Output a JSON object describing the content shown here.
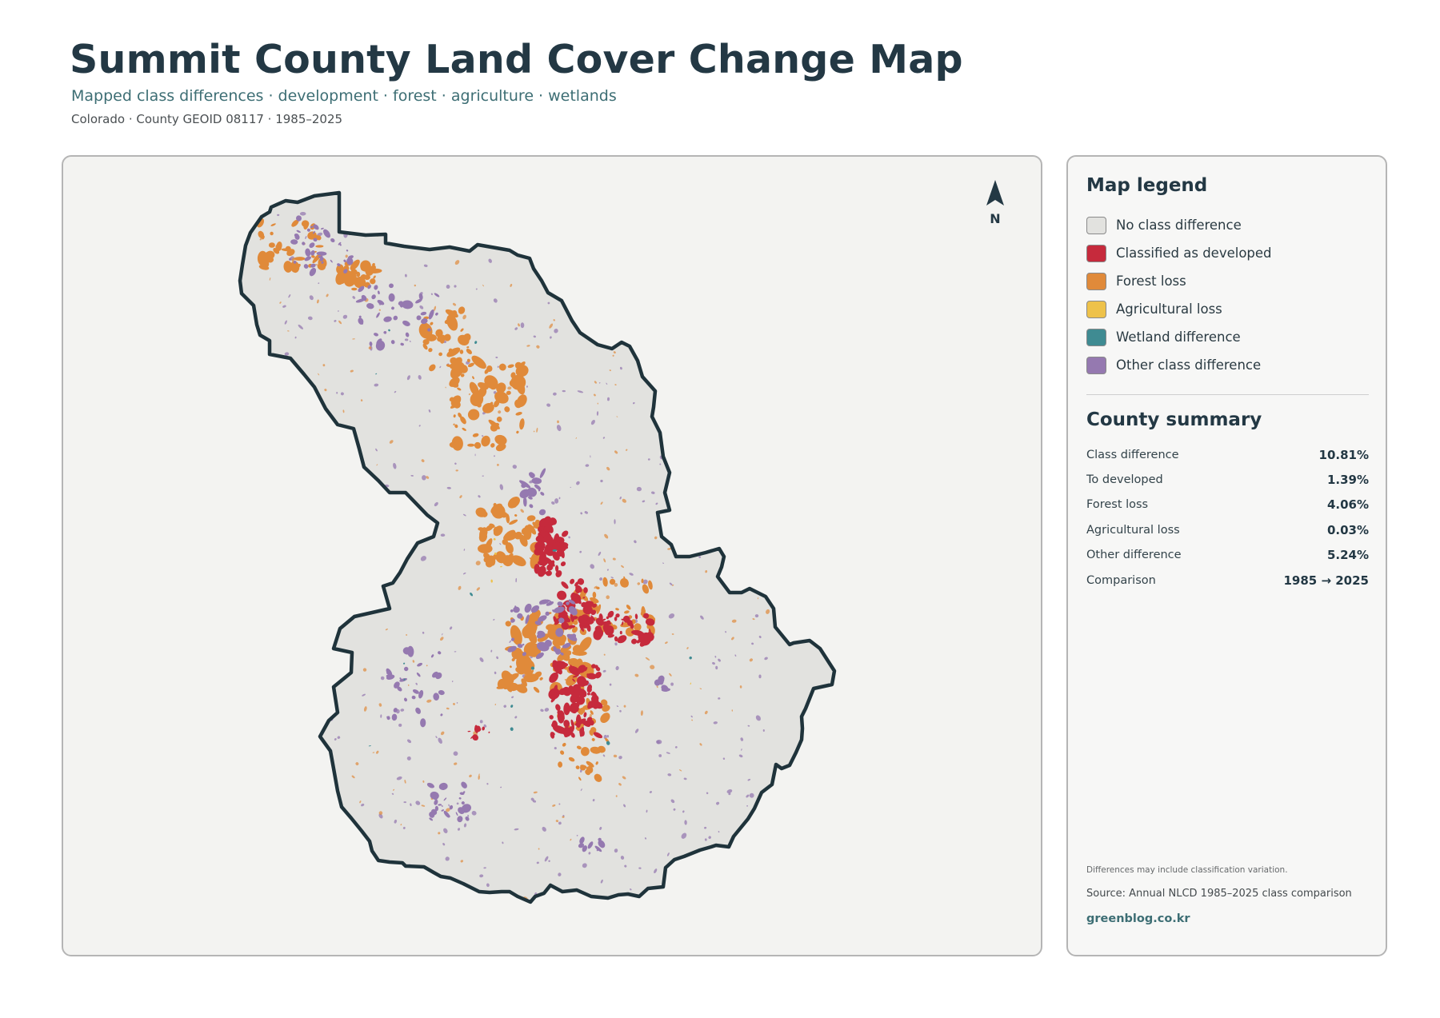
{
  "header": {
    "title": "Summit County Land Cover Change Map",
    "subtitle": "Mapped class differences · development · forest · agriculture · wetlands",
    "meta": "Colorado · County GEOID 08117 · 1985–2025"
  },
  "map": {
    "north_label": "N",
    "boundary_color": "#1f333b",
    "fill_color": "#e2e2df"
  },
  "legend": {
    "title": "Map legend",
    "items": [
      {
        "label": "No class difference",
        "color": "#e2e2df"
      },
      {
        "label": "Classified as developed",
        "color": "#c62a3c"
      },
      {
        "label": "Forest loss",
        "color": "#e08a3a"
      },
      {
        "label": "Agricultural loss",
        "color": "#eec24a"
      },
      {
        "label": "Wetland difference",
        "color": "#3f8b92"
      },
      {
        "label": "Other class difference",
        "color": "#9579b0"
      }
    ]
  },
  "summary": {
    "title": "County summary",
    "rows": [
      {
        "label": "Class difference",
        "value": "10.81%"
      },
      {
        "label": "To developed",
        "value": "1.39%"
      },
      {
        "label": "Forest loss",
        "value": "4.06%"
      },
      {
        "label": "Agricultural loss",
        "value": "0.03%"
      },
      {
        "label": "Other difference",
        "value": "5.24%"
      },
      {
        "label": "Comparison",
        "value": "1985 → 2025"
      }
    ]
  },
  "footer": {
    "note": "Differences may include classification variation.",
    "source": "Source: Annual NLCD 1985–2025 class comparison",
    "site": "greenblog.co.kr"
  }
}
